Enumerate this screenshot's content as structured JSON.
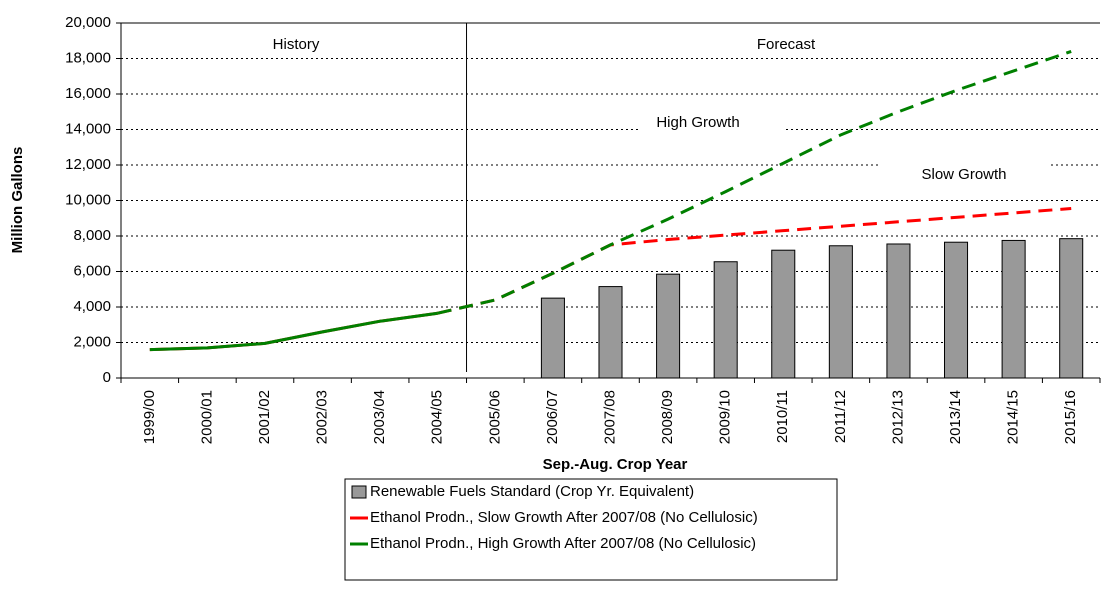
{
  "chart_data": {
    "type": "bar_line",
    "xlabel": "Sep.-Aug. Crop Year",
    "ylabel": "Million Gallons",
    "annotations": [
      "History",
      "Forecast",
      "High Growth",
      "Slow Growth"
    ],
    "categories": [
      "1999/00",
      "2000/01",
      "2001/02",
      "2002/03",
      "2003/04",
      "2004/05",
      "2005/06",
      "2006/07",
      "2007/08",
      "2008/09",
      "2009/10",
      "2010/11",
      "2011/12",
      "2012/13",
      "2013/14",
      "2014/15",
      "2015/16"
    ],
    "series": [
      {
        "name": "Renewable Fuels Standard (Crop Yr. Equivalent)",
        "kind": "bar",
        "color": "#999999",
        "values": [
          null,
          null,
          null,
          null,
          null,
          null,
          null,
          4500,
          5150,
          5850,
          6550,
          7200,
          7450,
          7550,
          7650,
          7750,
          7850
        ]
      },
      {
        "name": "Ethanol Prodn., Slow Growth After 2007/08 (No Cellulosic)",
        "kind": "line",
        "color": "#ff0000",
        "values": [
          1600,
          1700,
          1950,
          2600,
          3200,
          3650,
          4400,
          5900,
          7500,
          7800,
          8050,
          8300,
          8550,
          8800,
          9050,
          9300,
          9550
        ]
      },
      {
        "name": "Ethanol Prodn., High Growth After 2007/08 (No Cellulosic)",
        "kind": "line",
        "color": "#008000",
        "values": [
          1600,
          1700,
          1950,
          2600,
          3200,
          3650,
          4400,
          5900,
          7500,
          8950,
          10500,
          12100,
          13700,
          15000,
          16200,
          17300,
          18400
        ]
      }
    ],
    "ylim": [
      0,
      20000
    ],
    "yticks": [
      0,
      {
        "value": 2000,
        "label": "2,000"
      },
      {
        "value": 4000,
        "label": "4,000"
      },
      {
        "value": 6000,
        "label": "6,000"
      },
      {
        "value": 8000,
        "label": "8,000"
      },
      {
        "value": 10000,
        "label": "10,000"
      },
      {
        "value": 12000,
        "label": "12,000"
      },
      {
        "value": 14000,
        "label": "14,000"
      },
      {
        "value": 16000,
        "label": "16,000"
      },
      {
        "value": 18000,
        "label": "18,000"
      },
      {
        "value": 20000,
        "label": "20,000"
      }
    ],
    "grid": true
  }
}
